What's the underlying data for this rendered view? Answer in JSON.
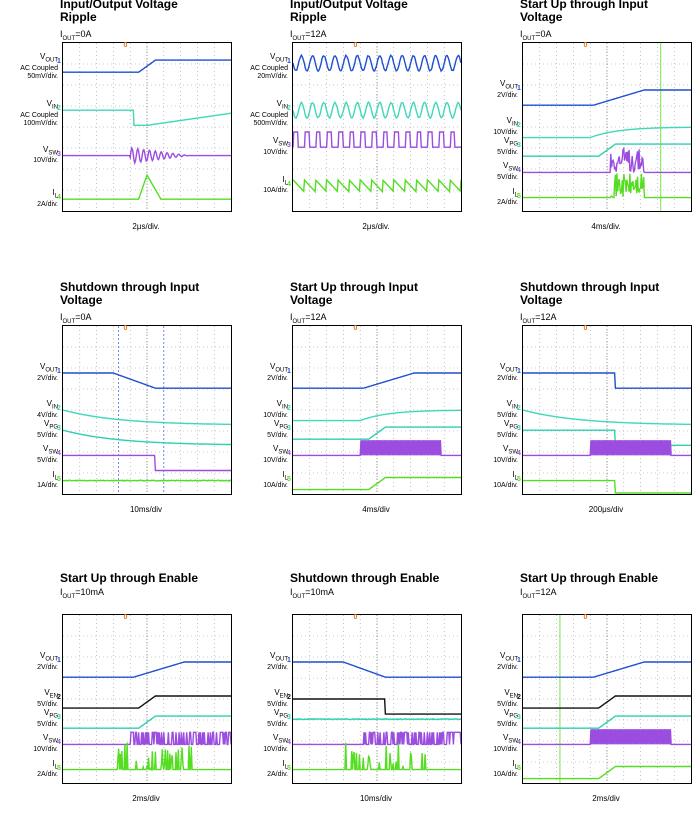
{
  "colors": {
    "vout": "#1f4fd1",
    "vin": "#3fd8b8",
    "vsw": "#9b4de0",
    "il": "#55dd22",
    "vpg": "#2bd1b0",
    "ven": "#111111",
    "trigger": "#e07820",
    "cursor": "#3355ff",
    "grid": "#9a9a9a"
  },
  "trigger_marker": "0",
  "panels": [
    {
      "title": "Input/Output Voltage\nRipple",
      "subtitle": {
        "main": "I",
        "sub": "OUT",
        "rest": "=0A"
      },
      "time_div": "2μs/div.",
      "channels": [
        {
          "name": "V",
          "sub": "OUT",
          "scale": "AC Coupled\n50mV/div.",
          "mark": "1"
        },
        {
          "name": "V",
          "sub": "IN",
          "scale": "AC Coupled\n100mV/div.",
          "mark": "2"
        },
        {
          "name": "V",
          "sub": "SW",
          "scale": "10V/div.",
          "mark": "3"
        },
        {
          "name": "I",
          "sub": "L",
          "scale": "2A/div.",
          "mark": "4"
        }
      ]
    },
    {
      "title": "Input/Output Voltage\nRipple",
      "subtitle": {
        "main": "I",
        "sub": "OUT",
        "rest": "=12A"
      },
      "time_div": "2μs/div.",
      "channels": [
        {
          "name": "V",
          "sub": "OUT",
          "scale": "AC Coupled\n20mV/div.",
          "mark": "1"
        },
        {
          "name": "V",
          "sub": "IN",
          "scale": "AC Coupled\n500mV/div.",
          "mark": "2"
        },
        {
          "name": "V",
          "sub": "SW",
          "scale": "10V/div.",
          "mark": "3"
        },
        {
          "name": "I",
          "sub": "L",
          "scale": "10A/div.",
          "mark": "4"
        }
      ]
    },
    {
      "title": "Start Up through Input\nVoltage",
      "subtitle": {
        "main": "I",
        "sub": "OUT",
        "rest": "=0A"
      },
      "time_div": "4ms/div.",
      "channels": [
        {
          "name": "V",
          "sub": "OUT",
          "scale": "2V/div.",
          "mark": "1"
        },
        {
          "name": "V",
          "sub": "IN",
          "scale": "10V/div.",
          "mark": "2"
        },
        {
          "name": "V",
          "sub": "PG",
          "scale": "5V/div.",
          "mark": "3"
        },
        {
          "name": "V",
          "sub": "SW",
          "scale": "5V/div.",
          "mark": "4"
        },
        {
          "name": "I",
          "sub": "L",
          "scale": "2A/div.",
          "mark": "5"
        }
      ]
    },
    {
      "title": "Shutdown through Input\nVoltage",
      "subtitle": {
        "main": "I",
        "sub": "OUT",
        "rest": "=0A"
      },
      "time_div": "10ms/div",
      "channels": [
        {
          "name": "V",
          "sub": "OUT",
          "scale": "2V/div.",
          "mark": "1"
        },
        {
          "name": "V",
          "sub": "IN",
          "scale": "4V/div.",
          "mark": "2"
        },
        {
          "name": "V",
          "sub": "PG",
          "scale": "5V/div.",
          "mark": "3"
        },
        {
          "name": "V",
          "sub": "SW",
          "scale": "5V/div.",
          "mark": "4"
        },
        {
          "name": "I",
          "sub": "L",
          "scale": "1A/div.",
          "mark": "5"
        }
      ]
    },
    {
      "title": "Start Up through Input\nVoltage",
      "subtitle": {
        "main": "I",
        "sub": "OUT",
        "rest": "=12A"
      },
      "time_div": "4ms/div",
      "channels": [
        {
          "name": "V",
          "sub": "OUT",
          "scale": "2V/div.",
          "mark": "1"
        },
        {
          "name": "V",
          "sub": "IN",
          "scale": "10V/div.",
          "mark": "2"
        },
        {
          "name": "V",
          "sub": "PG",
          "scale": "5V/div.",
          "mark": "3"
        },
        {
          "name": "V",
          "sub": "SW",
          "scale": "10V/div.",
          "mark": "4"
        },
        {
          "name": "I",
          "sub": "L",
          "scale": "10A/div.",
          "mark": "5"
        }
      ]
    },
    {
      "title": "Shutdown through Input\nVoltage",
      "subtitle": {
        "main": "I",
        "sub": "OUT",
        "rest": "=12A"
      },
      "time_div": "200μs/div",
      "channels": [
        {
          "name": "V",
          "sub": "OUT",
          "scale": "2V/div.",
          "mark": "1"
        },
        {
          "name": "V",
          "sub": "IN",
          "scale": "5V/div.",
          "mark": "2"
        },
        {
          "name": "V",
          "sub": "PG",
          "scale": "5V/div.",
          "mark": "3"
        },
        {
          "name": "V",
          "sub": "SW",
          "scale": "10V/div.",
          "mark": "4"
        },
        {
          "name": "I",
          "sub": "L",
          "scale": "10A/div.",
          "mark": "5"
        }
      ]
    },
    {
      "title": "Start Up through Enable",
      "subtitle": {
        "main": "I",
        "sub": "OUT",
        "rest": "=10mA"
      },
      "time_div": "2ms/div",
      "channels": [
        {
          "name": "V",
          "sub": "OUT",
          "scale": "2V/div.",
          "mark": "1"
        },
        {
          "name": "V",
          "sub": "EN",
          "scale": "5V/div.",
          "mark": "2"
        },
        {
          "name": "V",
          "sub": "PG",
          "scale": "5V/div.",
          "mark": "3"
        },
        {
          "name": "V",
          "sub": "SW",
          "scale": "10V/div.",
          "mark": "4"
        },
        {
          "name": "I",
          "sub": "L",
          "scale": "2A/div.",
          "mark": "5"
        }
      ]
    },
    {
      "title": "Shutdown through Enable",
      "subtitle": {
        "main": "I",
        "sub": "OUT",
        "rest": "=10mA"
      },
      "time_div": "10ms/div",
      "channels": [
        {
          "name": "V",
          "sub": "OUT",
          "scale": "2V/div.",
          "mark": "1"
        },
        {
          "name": "V",
          "sub": "EN",
          "scale": "5V/div.",
          "mark": "2"
        },
        {
          "name": "V",
          "sub": "PG",
          "scale": "5V/div.",
          "mark": "3"
        },
        {
          "name": "V",
          "sub": "SW",
          "scale": "10V/div.",
          "mark": "4"
        },
        {
          "name": "I",
          "sub": "L",
          "scale": "2A/div.",
          "mark": "5"
        }
      ]
    },
    {
      "title": "Start Up through Enable",
      "subtitle": {
        "main": "I",
        "sub": "OUT",
        "rest": "=12A"
      },
      "time_div": "2ms/div",
      "channels": [
        {
          "name": "V",
          "sub": "OUT",
          "scale": "2V/div.",
          "mark": "1"
        },
        {
          "name": "V",
          "sub": "EN",
          "scale": "5V/div.",
          "mark": "2"
        },
        {
          "name": "V",
          "sub": "PG",
          "scale": "5V/div.",
          "mark": "3"
        },
        {
          "name": "V",
          "sub": "SW",
          "scale": "10V/div.",
          "mark": "4"
        },
        {
          "name": "I",
          "sub": "L",
          "scale": "10A/div.",
          "mark": "5"
        }
      ]
    }
  ],
  "chart_data": {
    "type": "line",
    "grid": {
      "h_divisions": 10,
      "v_divisions": 8,
      "visible": true
    },
    "note": "Oscilloscope captures; traces are qualitative waveforms (step, ramp, ripple, switching).",
    "panels": [
      {
        "trace_shapes": [
          "step-up",
          "step-down-ramp",
          "switching-decay",
          "pulse"
        ]
      },
      {
        "trace_shapes": [
          "ripple",
          "ripple",
          "pulse-train",
          "sawtooth"
        ]
      },
      {
        "trace_shapes": [
          "soft-start-ramp",
          "ramp-up",
          "step-up",
          "burst",
          "burst"
        ]
      },
      {
        "trace_shapes": [
          "ramp-down",
          "decay",
          "decay",
          "step-down",
          "flat"
        ]
      },
      {
        "trace_shapes": [
          "soft-start-ramp",
          "ramp-up",
          "step-up",
          "dense-switching",
          "step-up"
        ]
      },
      {
        "trace_shapes": [
          "step-down",
          "decay",
          "step-down",
          "dense-switching",
          "step-down"
        ]
      },
      {
        "trace_shapes": [
          "soft-start-ramp",
          "step-up",
          "step-up",
          "switching",
          "spikes"
        ]
      },
      {
        "trace_shapes": [
          "ramp-down",
          "step-down",
          "flat",
          "switching",
          "spikes"
        ]
      },
      {
        "trace_shapes": [
          "soft-start-ramp",
          "step-up",
          "step-up",
          "dense-switching",
          "step-up"
        ]
      }
    ]
  }
}
